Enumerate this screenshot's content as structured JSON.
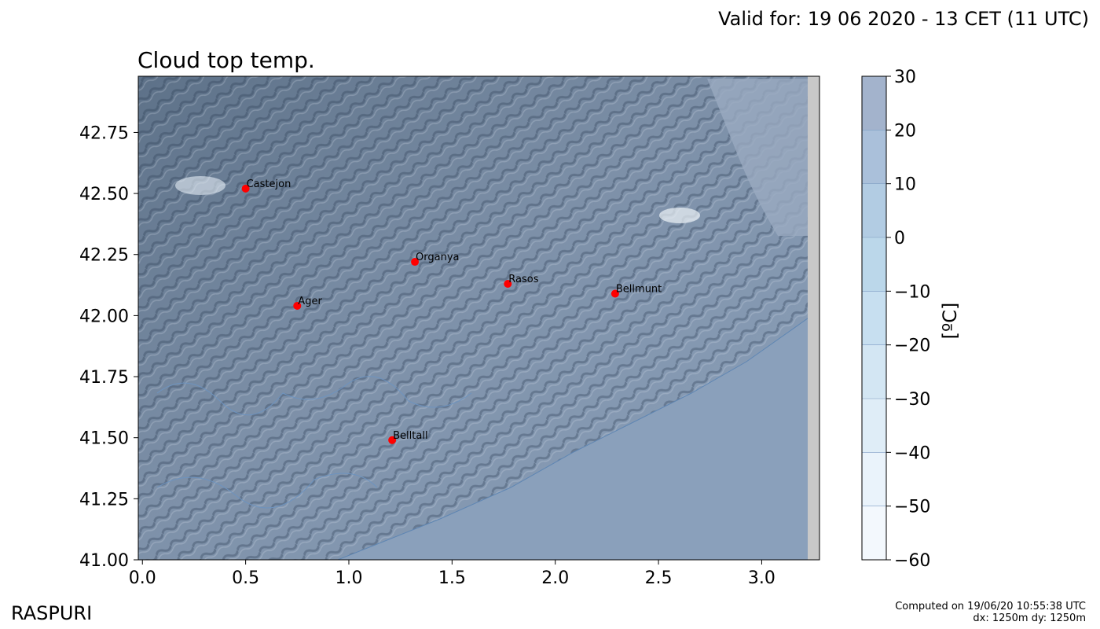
{
  "header": {
    "valid_for": "Valid for: 19 06 2020 - 13 CET (11 UTC)",
    "title": "Cloud top temp."
  },
  "footer": {
    "brand": "RASPURI",
    "computed_line1": "Computed on 19/06/20 10:55:38 UTC",
    "computed_line2": "dx: 1250m dy: 1250m"
  },
  "colorbar": {
    "unit_label": "[ºC]",
    "ticks": [
      30,
      20,
      10,
      0,
      -10,
      -20,
      -30,
      -40,
      -50,
      -60
    ],
    "tick_labels": [
      "30",
      "20",
      "10",
      "0",
      "−10",
      "−20",
      "−30",
      "−40",
      "−50",
      "−60"
    ],
    "colors": [
      "#a3b3cc",
      "#aac0da",
      "#b2cce3",
      "#bbd7ea",
      "#c7dff0",
      "#d3e6f3",
      "#dfedf7",
      "#eaf3fb",
      "#f3f8fd",
      "#fbfdff"
    ]
  },
  "chart_data": {
    "type": "scatter",
    "x_ticks": [
      0.0,
      0.5,
      1.0,
      1.5,
      2.0,
      2.5,
      3.0
    ],
    "x_tick_labels": [
      "0.0",
      "0.5",
      "1.0",
      "1.5",
      "2.0",
      "2.5",
      "3.0"
    ],
    "y_ticks": [
      41.0,
      41.25,
      41.5,
      41.75,
      42.0,
      42.25,
      42.5,
      42.75
    ],
    "y_tick_labels": [
      "41.00",
      "41.25",
      "41.50",
      "41.75",
      "42.00",
      "42.25",
      "42.50",
      "42.75"
    ],
    "xlim": [
      -0.02,
      3.28
    ],
    "ylim": [
      41.0,
      42.98
    ],
    "points": [
      {
        "name": "Castejon",
        "x": 0.5,
        "y": 42.52
      },
      {
        "name": "Organya",
        "x": 1.32,
        "y": 42.22
      },
      {
        "name": "Rasos",
        "x": 1.77,
        "y": 42.13
      },
      {
        "name": "Ager",
        "x": 0.75,
        "y": 42.04
      },
      {
        "name": "Bellmunt",
        "x": 2.29,
        "y": 42.09
      },
      {
        "name": "Belltall",
        "x": 1.21,
        "y": 41.49
      }
    ],
    "marker_color": "#ff0000",
    "grid": false
  }
}
